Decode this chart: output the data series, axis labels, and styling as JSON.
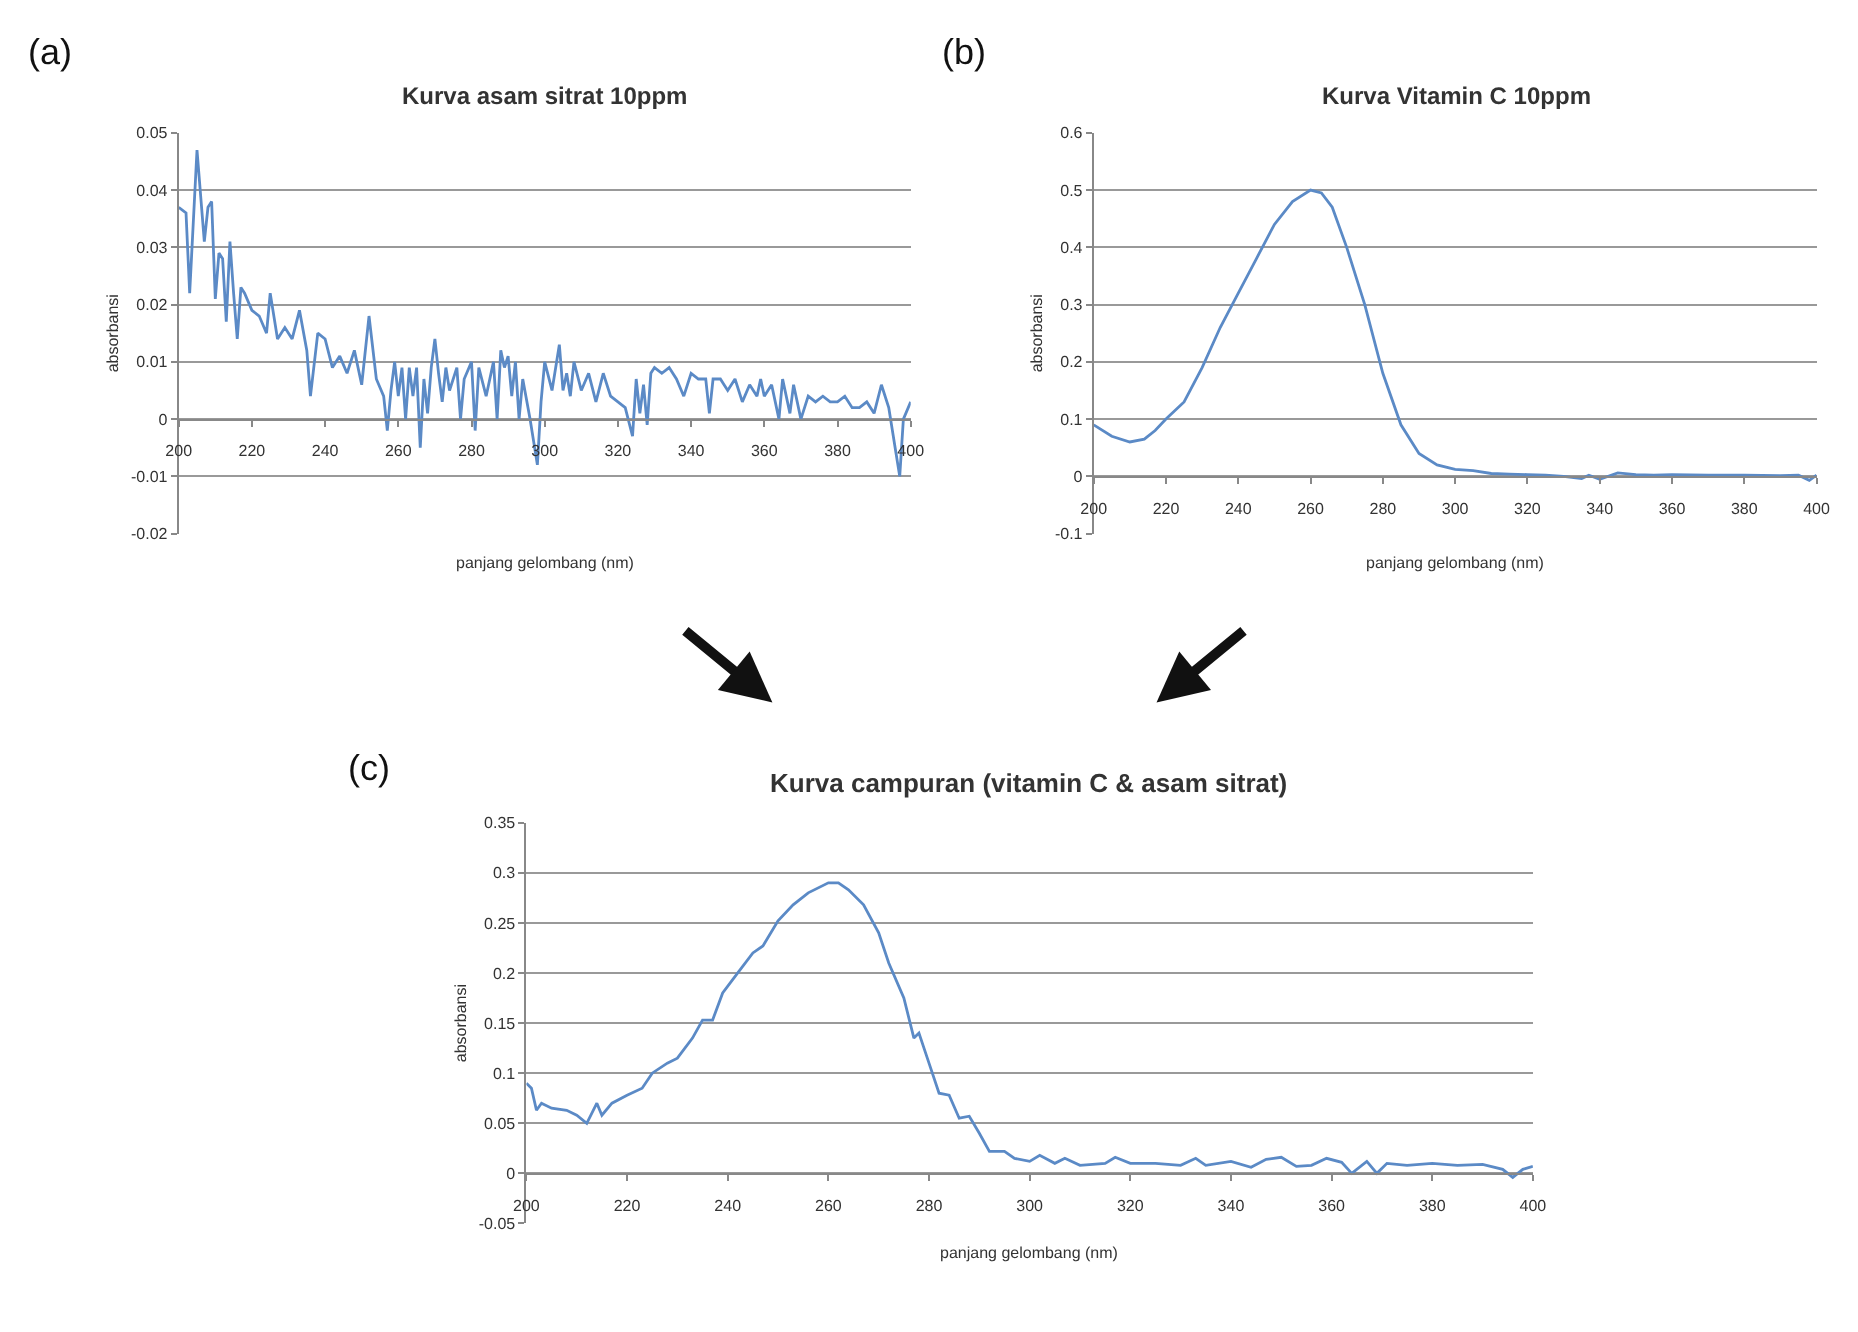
{
  "chart_data": [
    {
      "type": "line",
      "title": "Kurva asam sitrat 10ppm",
      "xlabel": "panjang gelombang (nm)",
      "ylabel": "absorbansi",
      "annotations": [
        "(a)"
      ],
      "grid": "y",
      "marker": "none",
      "line_style": "solid",
      "xlim": [
        200,
        400
      ],
      "xticks": [
        200,
        220,
        240,
        260,
        280,
        300,
        320,
        340,
        360,
        380,
        400
      ],
      "ylim": [
        -0.02,
        0.05
      ],
      "yticks": [
        -0.02,
        -0.01,
        0,
        0.01,
        0.02,
        0.03,
        0.04,
        0.05
      ],
      "series": [
        {
          "color": "#5b8ac6",
          "x": [
            200,
            202,
            203,
            205,
            207,
            208,
            209,
            210,
            211,
            212,
            213,
            214,
            215,
            216,
            217,
            218,
            220,
            222,
            224,
            225,
            227,
            229,
            231,
            233,
            235,
            236,
            238,
            240,
            242,
            244,
            246,
            248,
            250,
            252,
            254,
            256,
            257,
            258,
            259,
            260,
            261,
            262,
            263,
            264,
            265,
            266,
            267,
            268,
            269,
            270,
            271,
            272,
            273,
            274,
            276,
            277,
            278,
            280,
            281,
            282,
            284,
            286,
            287,
            288,
            289,
            290,
            291,
            292,
            293,
            294,
            296,
            298,
            299,
            300,
            302,
            304,
            305,
            306,
            307,
            308,
            310,
            312,
            314,
            316,
            318,
            320,
            322,
            324,
            325,
            326,
            327,
            328,
            329,
            330,
            332,
            334,
            336,
            338,
            340,
            342,
            344,
            345,
            346,
            348,
            350,
            352,
            354,
            356,
            358,
            359,
            360,
            362,
            364,
            365,
            367,
            368,
            370,
            372,
            374,
            376,
            378,
            380,
            382,
            384,
            386,
            388,
            390,
            392,
            394,
            396,
            397,
            398,
            400
          ],
          "values": [
            0.037,
            0.036,
            0.022,
            0.047,
            0.031,
            0.037,
            0.038,
            0.021,
            0.029,
            0.028,
            0.017,
            0.031,
            0.022,
            0.014,
            0.023,
            0.022,
            0.019,
            0.018,
            0.015,
            0.022,
            0.014,
            0.016,
            0.014,
            0.019,
            0.012,
            0.004,
            0.015,
            0.014,
            0.009,
            0.011,
            0.008,
            0.012,
            0.006,
            0.018,
            0.007,
            0.004,
            -0.002,
            0.005,
            0.01,
            0.004,
            0.009,
            0.0,
            0.009,
            0.004,
            0.009,
            -0.005,
            0.007,
            0.001,
            0.009,
            0.014,
            0.008,
            0.003,
            0.009,
            0.005,
            0.009,
            0.0,
            0.007,
            0.01,
            -0.002,
            0.009,
            0.004,
            0.01,
            0.0,
            0.012,
            0.009,
            0.011,
            0.004,
            0.01,
            0.0,
            0.007,
            0.0,
            -0.008,
            0.003,
            0.01,
            0.005,
            0.013,
            0.005,
            0.008,
            0.004,
            0.01,
            0.005,
            0.008,
            0.003,
            0.008,
            0.004,
            0.003,
            0.002,
            -0.003,
            0.007,
            0.001,
            0.006,
            -0.001,
            0.008,
            0.009,
            0.008,
            0.009,
            0.007,
            0.004,
            0.008,
            0.007,
            0.007,
            0.001,
            0.007,
            0.007,
            0.005,
            0.007,
            0.003,
            0.006,
            0.004,
            0.007,
            0.004,
            0.006,
            0.0,
            0.007,
            0.001,
            0.006,
            0.0,
            0.004,
            0.003,
            0.004,
            0.003,
            0.003,
            0.004,
            0.002,
            0.002,
            0.003,
            0.001,
            0.006,
            0.002,
            -0.006,
            -0.01,
            0.0,
            0.003
          ]
        }
      ]
    },
    {
      "type": "line",
      "title": "Kurva Vitamin C 10ppm",
      "xlabel": "panjang gelombang (nm)",
      "ylabel": "absorbansi",
      "annotations": [
        "(b)"
      ],
      "grid": "y",
      "marker": "none",
      "line_style": "solid",
      "xlim": [
        200,
        400
      ],
      "xticks": [
        200,
        220,
        240,
        260,
        280,
        300,
        320,
        340,
        360,
        380,
        400
      ],
      "ylim": [
        -0.1,
        0.6
      ],
      "yticks": [
        -0.1,
        0,
        0.1,
        0.2,
        0.3,
        0.4,
        0.5,
        0.6
      ],
      "series": [
        {
          "color": "#5b8ac6",
          "x": [
            200,
            205,
            210,
            214,
            217,
            220,
            225,
            230,
            235,
            240,
            245,
            250,
            255,
            260,
            263,
            266,
            270,
            275,
            280,
            285,
            290,
            295,
            300,
            305,
            310,
            315,
            320,
            325,
            330,
            335,
            337,
            340,
            345,
            350,
            355,
            360,
            370,
            380,
            390,
            395,
            398,
            400
          ],
          "values": [
            0.09,
            0.07,
            0.06,
            0.065,
            0.08,
            0.1,
            0.13,
            0.19,
            0.26,
            0.32,
            0.38,
            0.44,
            0.48,
            0.5,
            0.495,
            0.47,
            0.4,
            0.3,
            0.18,
            0.09,
            0.04,
            0.02,
            0.012,
            0.01,
            0.005,
            0.004,
            0.003,
            0.002,
            0.0,
            -0.004,
            0.002,
            -0.005,
            0.006,
            0.003,
            0.002,
            0.003,
            0.002,
            0.002,
            0.001,
            0.002,
            -0.007,
            0.002
          ]
        }
      ]
    },
    {
      "type": "line",
      "title": "Kurva campuran (vitamin C & asam sitrat)",
      "xlabel": "panjang gelombang (nm)",
      "ylabel": "absorbansi",
      "annotations": [
        "(c)"
      ],
      "grid": "y",
      "marker": "none",
      "line_style": "solid",
      "xlim": [
        200,
        400
      ],
      "xticks": [
        200,
        220,
        240,
        260,
        280,
        300,
        320,
        340,
        360,
        380,
        400
      ],
      "ylim": [
        -0.05,
        0.35
      ],
      "yticks": [
        -0.05,
        0,
        0.05,
        0.1,
        0.15,
        0.2,
        0.25,
        0.3,
        0.35
      ],
      "series": [
        {
          "color": "#5b8ac6",
          "x": [
            200,
            201,
            202,
            203,
            205,
            208,
            210,
            212,
            214,
            215,
            217,
            220,
            223,
            225,
            228,
            230,
            233,
            235,
            237,
            239,
            242,
            245,
            247,
            250,
            253,
            256,
            260,
            262,
            264,
            267,
            270,
            272,
            275,
            277,
            278,
            280,
            282,
            284,
            286,
            288,
            290,
            292,
            295,
            297,
            300,
            302,
            305,
            307,
            310,
            315,
            317,
            320,
            325,
            330,
            333,
            335,
            340,
            344,
            347,
            350,
            353,
            356,
            359,
            362,
            364,
            367,
            369,
            371,
            375,
            380,
            385,
            390,
            394,
            396,
            398,
            400
          ],
          "values": [
            0.09,
            0.085,
            0.063,
            0.07,
            0.065,
            0.063,
            0.058,
            0.05,
            0.07,
            0.058,
            0.07,
            0.078,
            0.085,
            0.1,
            0.11,
            0.115,
            0.135,
            0.153,
            0.153,
            0.18,
            0.2,
            0.22,
            0.227,
            0.252,
            0.268,
            0.28,
            0.29,
            0.29,
            0.283,
            0.268,
            0.24,
            0.21,
            0.175,
            0.135,
            0.14,
            0.11,
            0.08,
            0.078,
            0.055,
            0.057,
            0.04,
            0.022,
            0.022,
            0.015,
            0.012,
            0.018,
            0.01,
            0.015,
            0.008,
            0.01,
            0.016,
            0.01,
            0.01,
            0.008,
            0.015,
            0.008,
            0.012,
            0.006,
            0.014,
            0.016,
            0.007,
            0.008,
            0.015,
            0.011,
            0.0,
            0.012,
            0.0,
            0.01,
            0.008,
            0.01,
            0.008,
            0.009,
            0.004,
            -0.004,
            0.004,
            0.007
          ]
        }
      ]
    }
  ]
}
